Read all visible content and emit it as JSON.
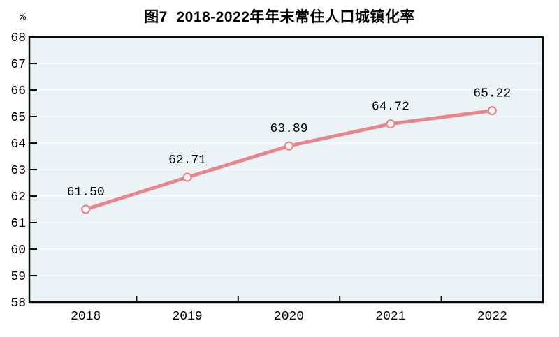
{
  "page": {
    "background": "#ffffff"
  },
  "chart_data": {
    "type": "line",
    "title": "图7  2018-2022年年末常住人口城镇化率",
    "unit_label": "%",
    "categories": [
      "2018",
      "2019",
      "2020",
      "2021",
      "2022"
    ],
    "values": [
      61.5,
      62.71,
      63.89,
      64.72,
      65.22
    ],
    "point_labels": [
      "61.50",
      "62.71",
      "63.89",
      "64.72",
      "65.22"
    ],
    "ylim": [
      58,
      68
    ],
    "ytick_step": 1,
    "ytick_labels": [
      "58",
      "59",
      "60",
      "61",
      "62",
      "63",
      "64",
      "65",
      "66",
      "67",
      "68"
    ],
    "grid": true,
    "legend_position": "none",
    "colors": {
      "line": "#e8868d",
      "marker_fill": "#fdf4f3",
      "marker_stroke": "#e8868d",
      "plot_background": "#ebf3f7",
      "gridline": "#fbfdfe",
      "axis": "#0a0a0a",
      "text": "#000000"
    }
  }
}
